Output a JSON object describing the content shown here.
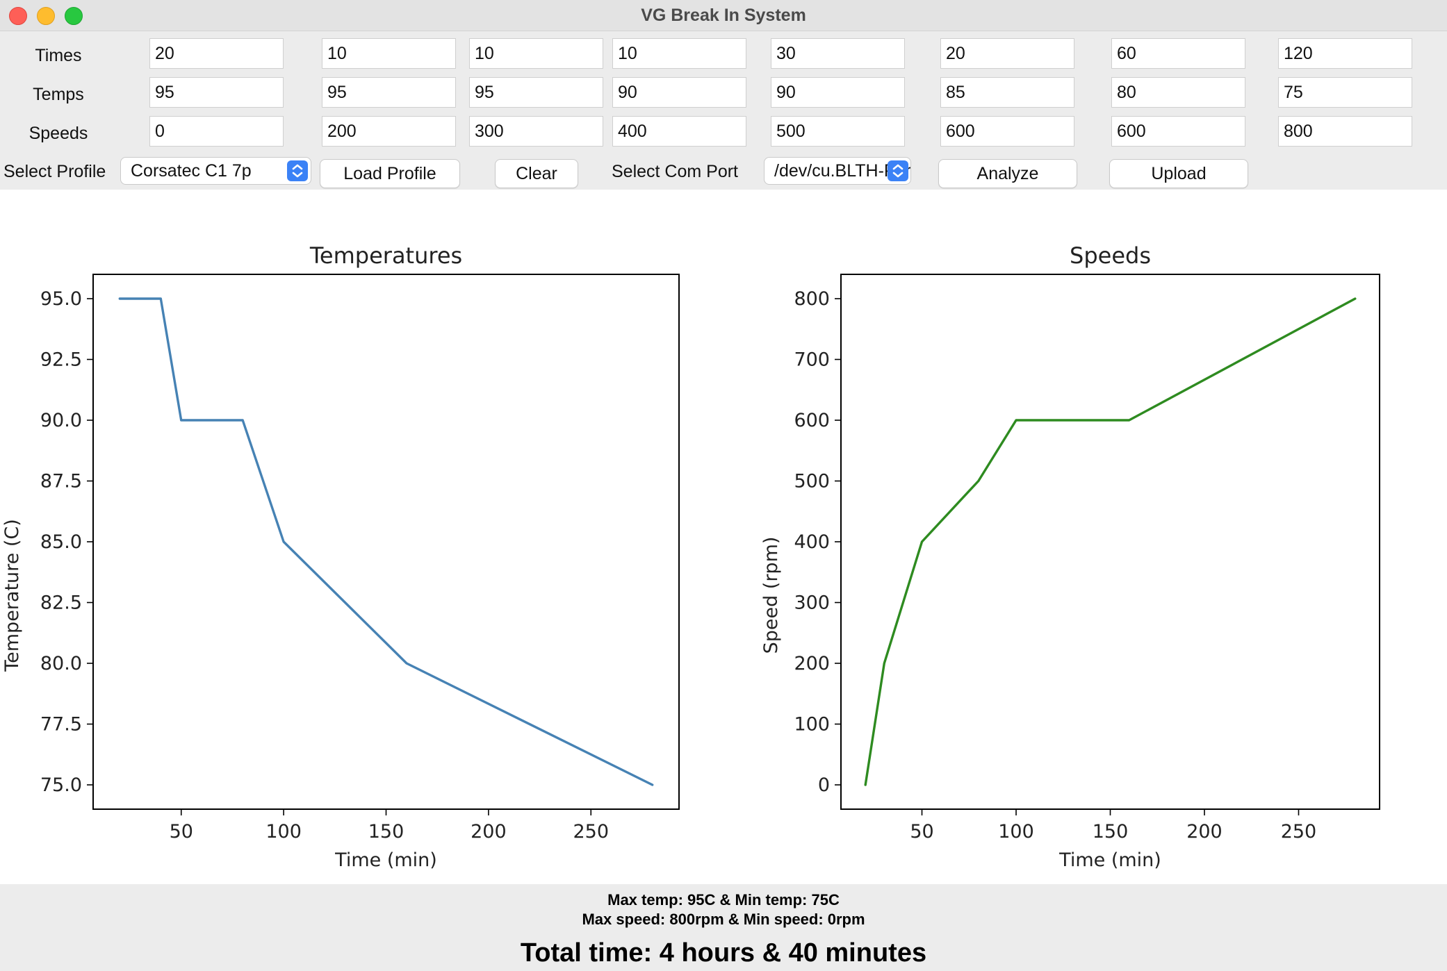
{
  "window": {
    "title": "VG Break In System"
  },
  "rows": [
    {
      "label": "Times",
      "values": [
        "20",
        "10",
        "10",
        "10",
        "30",
        "20",
        "60",
        "120"
      ]
    },
    {
      "label": "Temps",
      "values": [
        "95",
        "95",
        "95",
        "90",
        "90",
        "85",
        "80",
        "75"
      ]
    },
    {
      "label": "Speeds",
      "values": [
        "0",
        "200",
        "300",
        "400",
        "500",
        "600",
        "600",
        "800"
      ]
    }
  ],
  "controls": {
    "select_profile_label": "Select Profile",
    "profile_value": "Corsatec C1 7p",
    "load_profile": "Load Profile",
    "clear": "Clear",
    "select_com_port_label": "Select Com Port",
    "com_port_value": "/dev/cu.BLTH-Por",
    "analyze": "Analyze",
    "upload": "Upload"
  },
  "chart_data": [
    {
      "type": "line",
      "title": "Temperatures",
      "xlabel": "Time (min)",
      "ylabel": "Temperature (C)",
      "x": [
        20,
        40,
        50,
        80,
        100,
        160,
        280
      ],
      "y": [
        95,
        95,
        90,
        90,
        85,
        80,
        75
      ],
      "xticks": [
        50,
        100,
        150,
        200,
        250
      ],
      "yticks": [
        75.0,
        77.5,
        80.0,
        82.5,
        85.0,
        87.5,
        90.0,
        92.5,
        95.0
      ],
      "xlim": [
        7,
        293
      ],
      "ylim": [
        74.0,
        96.0
      ],
      "color": "#4682b4",
      "grid": false
    },
    {
      "type": "line",
      "title": "Speeds",
      "xlabel": "Time (min)",
      "ylabel": "Speed (rpm)",
      "x": [
        20,
        30,
        50,
        80,
        100,
        160,
        280
      ],
      "y": [
        0,
        200,
        400,
        500,
        600,
        600,
        800
      ],
      "xticks": [
        50,
        100,
        150,
        200,
        250
      ],
      "yticks": [
        0,
        100,
        200,
        300,
        400,
        500,
        600,
        700,
        800
      ],
      "xlim": [
        7,
        293
      ],
      "ylim": [
        -40,
        840
      ],
      "color": "#2e8b20",
      "grid": false
    }
  ],
  "status": {
    "temp_line": "Max temp: 95C & Min temp: 75C",
    "speed_line": "Max speed: 800rpm & Min speed: 0rpm",
    "total_time": "Total time: 4 hours & 40 minutes"
  }
}
